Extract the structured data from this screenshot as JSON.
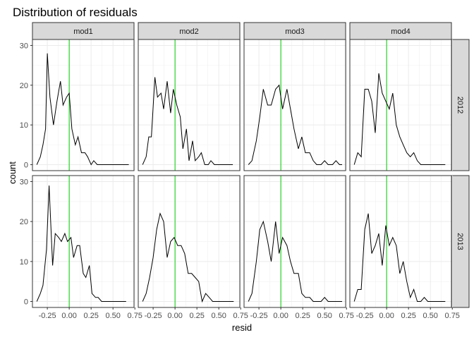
{
  "chart_data": {
    "type": "line",
    "title": "Distribution of residuals",
    "xlabel": "resid",
    "ylabel": "count",
    "xlim": [
      -0.42,
      0.74
    ],
    "ylim": [
      -1.5,
      31.5
    ],
    "xticks": [
      -0.25,
      0.0,
      0.25,
      0.5,
      0.75
    ],
    "xtick_labels": [
      "-0.25",
      "0.00",
      "0.25",
      "0.50",
      "0.75"
    ],
    "yticks": [
      0,
      10,
      20,
      30
    ],
    "ytick_labels": [
      "0",
      "10",
      "20",
      "30"
    ],
    "vline": {
      "x": 0,
      "color": "#00cc00"
    },
    "columns": [
      "mod1",
      "mod2",
      "mod3",
      "mod4"
    ],
    "rows": [
      "2012",
      "2013"
    ],
    "panels": [
      {
        "col": "mod1",
        "row": "2012",
        "x": [
          -0.37,
          -0.33,
          -0.3,
          -0.27,
          -0.25,
          -0.22,
          -0.18,
          -0.14,
          -0.1,
          -0.07,
          -0.03,
          0.0,
          0.03,
          0.07,
          0.1,
          0.14,
          0.18,
          0.21,
          0.25,
          0.28,
          0.32,
          0.36,
          0.39,
          0.43,
          0.47,
          0.5,
          0.54,
          0.57,
          0.61,
          0.64,
          0.68
        ],
        "y": [
          0,
          2,
          5,
          9,
          28,
          17,
          10,
          16,
          21,
          15,
          17,
          18,
          9,
          5,
          7,
          3,
          3,
          2,
          0,
          1,
          0,
          0,
          0,
          0,
          0,
          0,
          0,
          0,
          0,
          0,
          0
        ]
      },
      {
        "col": "mod2",
        "row": "2012",
        "x": [
          -0.37,
          -0.33,
          -0.3,
          -0.27,
          -0.23,
          -0.2,
          -0.16,
          -0.13,
          -0.09,
          -0.05,
          -0.02,
          0.02,
          0.06,
          0.09,
          0.13,
          0.16,
          0.2,
          0.23,
          0.27,
          0.3,
          0.34,
          0.38,
          0.41,
          0.45,
          0.48,
          0.52,
          0.55,
          0.59,
          0.63,
          0.66
        ],
        "y": [
          0,
          2,
          7,
          7,
          22,
          17,
          18,
          14,
          21,
          13,
          19,
          15,
          12,
          4,
          9,
          1,
          6,
          1,
          2,
          3,
          0,
          0,
          1,
          0,
          0,
          0,
          0,
          0,
          0,
          0
        ]
      },
      {
        "col": "mod3",
        "row": "2012",
        "x": [
          -0.37,
          -0.33,
          -0.28,
          -0.24,
          -0.2,
          -0.15,
          -0.11,
          -0.06,
          -0.02,
          0.02,
          0.07,
          0.11,
          0.15,
          0.2,
          0.24,
          0.28,
          0.33,
          0.37,
          0.41,
          0.46,
          0.5,
          0.54,
          0.59,
          0.63,
          0.67,
          0.7
        ],
        "y": [
          0,
          1,
          6,
          12,
          19,
          15,
          15,
          19,
          20,
          14,
          19,
          14,
          9,
          4,
          7,
          3,
          3,
          1,
          0,
          0,
          1,
          0,
          0,
          1,
          0,
          0
        ]
      },
      {
        "col": "mod4",
        "row": "2012",
        "x": [
          -0.37,
          -0.33,
          -0.29,
          -0.25,
          -0.21,
          -0.17,
          -0.13,
          -0.09,
          -0.05,
          -0.01,
          0.03,
          0.07,
          0.11,
          0.15,
          0.19,
          0.23,
          0.27,
          0.31,
          0.35,
          0.39,
          0.43,
          0.47,
          0.51,
          0.55,
          0.59,
          0.63,
          0.67
        ],
        "y": [
          0,
          3,
          2,
          19,
          19,
          16,
          8,
          23,
          18,
          16,
          14,
          18,
          10,
          7,
          5,
          3,
          2,
          3,
          1,
          0,
          0,
          0,
          0,
          0,
          0,
          0,
          0
        ]
      },
      {
        "col": "mod1",
        "row": "2013",
        "x": [
          -0.37,
          -0.33,
          -0.3,
          -0.26,
          -0.23,
          -0.19,
          -0.16,
          -0.12,
          -0.09,
          -0.05,
          -0.02,
          0.02,
          0.05,
          0.09,
          0.12,
          0.16,
          0.19,
          0.23,
          0.26,
          0.3,
          0.33,
          0.37,
          0.4,
          0.44,
          0.47,
          0.51,
          0.54,
          0.58,
          0.61,
          0.65
        ],
        "y": [
          0,
          2,
          4,
          13,
          29,
          9,
          17,
          16,
          15,
          17,
          15,
          16,
          11,
          14,
          14,
          7,
          6,
          9,
          2,
          1,
          1,
          0,
          0,
          0,
          0,
          0,
          0,
          0,
          0,
          0
        ]
      },
      {
        "col": "mod2",
        "row": "2013",
        "x": [
          -0.37,
          -0.33,
          -0.29,
          -0.25,
          -0.21,
          -0.17,
          -0.13,
          -0.09,
          -0.05,
          -0.01,
          0.03,
          0.07,
          0.11,
          0.15,
          0.19,
          0.23,
          0.27,
          0.31,
          0.35,
          0.39,
          0.43,
          0.47,
          0.51,
          0.55,
          0.59,
          0.63,
          0.67
        ],
        "y": [
          0,
          2,
          6,
          11,
          18,
          22,
          20,
          11,
          15,
          16,
          14,
          14,
          12,
          7,
          7,
          6,
          5,
          0,
          2,
          1,
          0,
          0,
          0,
          0,
          0,
          0,
          0
        ]
      },
      {
        "col": "mod3",
        "row": "2013",
        "x": [
          -0.37,
          -0.33,
          -0.28,
          -0.24,
          -0.2,
          -0.15,
          -0.11,
          -0.06,
          -0.02,
          0.02,
          0.07,
          0.11,
          0.15,
          0.2,
          0.24,
          0.28,
          0.33,
          0.37,
          0.41,
          0.46,
          0.5,
          0.54,
          0.59,
          0.63,
          0.67,
          0.7
        ],
        "y": [
          0,
          2,
          10,
          18,
          20,
          15,
          10,
          20,
          12,
          16,
          14,
          10,
          7,
          7,
          2,
          1,
          1,
          0,
          0,
          0,
          1,
          0,
          0,
          0,
          0,
          0
        ]
      },
      {
        "col": "mod4",
        "row": "2013",
        "x": [
          -0.37,
          -0.33,
          -0.29,
          -0.25,
          -0.21,
          -0.17,
          -0.13,
          -0.09,
          -0.05,
          -0.01,
          0.03,
          0.07,
          0.11,
          0.15,
          0.19,
          0.23,
          0.27,
          0.31,
          0.35,
          0.39,
          0.43,
          0.47,
          0.51,
          0.55,
          0.59,
          0.63,
          0.67
        ],
        "y": [
          0,
          3,
          3,
          18,
          22,
          12,
          14,
          17,
          9,
          19,
          14,
          16,
          14,
          7,
          10,
          5,
          1,
          3,
          0,
          0,
          1,
          0,
          0,
          0,
          0,
          0,
          0
        ]
      }
    ]
  }
}
